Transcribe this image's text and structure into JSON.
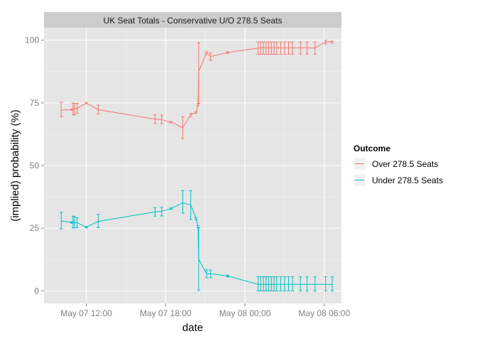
{
  "chart_data": {
    "type": "line",
    "title": "UK Seat Totals - Conservative U/O 278.5 Seats",
    "xlabel": "date",
    "ylabel": "(implied) probability (%)",
    "x_unit": "hours since May 07 00:00",
    "xlim": [
      8.8,
      31.3
    ],
    "ylim": [
      -5,
      105
    ],
    "x_ticks": [
      {
        "value": 12,
        "label": "May 07 12:00"
      },
      {
        "value": 18,
        "label": "May 07 18:00"
      },
      {
        "value": 24,
        "label": "May 08 00:00"
      },
      {
        "value": 30,
        "label": "May 08 06:00"
      }
    ],
    "y_ticks": [
      0,
      25,
      50,
      75,
      100
    ],
    "grid": true,
    "legend": {
      "title": "Outcome",
      "position": "right"
    },
    "colors": {
      "over": "#F8766D",
      "under": "#00BFC4"
    },
    "series": [
      {
        "name": "Over 278.5 Seats",
        "color": "#F8766D",
        "points": [
          {
            "x": 10.1,
            "y": 72.1,
            "lo": 69.5,
            "hi": 75.2
          },
          {
            "x": 10.9,
            "y": 72.3,
            "lo": 72.0,
            "hi": 72.6
          },
          {
            "x": 11.0,
            "y": 72.6,
            "lo": 70.2,
            "hi": 74.9
          },
          {
            "x": 11.1,
            "y": 72.6,
            "lo": 70.3,
            "hi": 74.8
          },
          {
            "x": 11.3,
            "y": 72.8,
            "lo": 70.8,
            "hi": 74.8
          },
          {
            "x": 12.0,
            "y": 74.9,
            "lo": 74.6,
            "hi": 75.2
          },
          {
            "x": 12.9,
            "y": 72.3,
            "lo": 70.5,
            "hi": 74.1
          },
          {
            "x": 17.2,
            "y": 68.5,
            "lo": 66.8,
            "hi": 70.3
          },
          {
            "x": 17.7,
            "y": 68.3,
            "lo": 66.7,
            "hi": 70.1
          },
          {
            "x": 18.4,
            "y": 67.3,
            "lo": 67.0,
            "hi": 67.6
          },
          {
            "x": 19.3,
            "y": 65.1,
            "lo": 60.8,
            "hi": 69.4
          },
          {
            "x": 19.9,
            "y": 70.2,
            "lo": 69.5,
            "hi": 70.8
          },
          {
            "x": 20.3,
            "y": 71.2,
            "lo": 70.9,
            "hi": 71.5
          },
          {
            "x": 20.45,
            "y": 74.2,
            "lo": 73.8,
            "hi": 74.6
          },
          {
            "x": 20.5,
            "y": 87.6,
            "lo": 74.8,
            "hi": 99.0
          },
          {
            "x": 21.1,
            "y": 95.0,
            "lo": 94.6,
            "hi": 95.4
          },
          {
            "x": 21.4,
            "y": 93.5,
            "lo": 92.0,
            "hi": 95.0
          },
          {
            "x": 22.7,
            "y": 95.1,
            "lo": 94.8,
            "hi": 95.4
          },
          {
            "x": 25.0,
            "y": 96.9,
            "lo": 94.4,
            "hi": 99.3
          },
          {
            "x": 25.2,
            "y": 97.0,
            "lo": 94.4,
            "hi": 99.3
          },
          {
            "x": 25.4,
            "y": 97.0,
            "lo": 94.4,
            "hi": 99.3
          },
          {
            "x": 25.6,
            "y": 97.0,
            "lo": 94.4,
            "hi": 99.3
          },
          {
            "x": 25.8,
            "y": 97.0,
            "lo": 94.4,
            "hi": 99.3
          },
          {
            "x": 26.0,
            "y": 97.0,
            "lo": 94.4,
            "hi": 99.3
          },
          {
            "x": 26.2,
            "y": 97.0,
            "lo": 94.4,
            "hi": 99.3
          },
          {
            "x": 26.4,
            "y": 97.0,
            "lo": 94.4,
            "hi": 99.3
          },
          {
            "x": 26.7,
            "y": 97.0,
            "lo": 94.4,
            "hi": 99.3
          },
          {
            "x": 27.0,
            "y": 97.0,
            "lo": 94.4,
            "hi": 99.3
          },
          {
            "x": 27.3,
            "y": 97.0,
            "lo": 94.4,
            "hi": 99.3
          },
          {
            "x": 27.6,
            "y": 97.0,
            "lo": 94.4,
            "hi": 99.3
          },
          {
            "x": 28.2,
            "y": 97.0,
            "lo": 94.4,
            "hi": 99.3
          },
          {
            "x": 28.7,
            "y": 97.0,
            "lo": 94.4,
            "hi": 99.3
          },
          {
            "x": 29.3,
            "y": 96.9,
            "lo": 94.4,
            "hi": 99.3
          },
          {
            "x": 30.1,
            "y": 99.4,
            "lo": 98.5,
            "hi": 100.0
          },
          {
            "x": 30.6,
            "y": 99.4,
            "lo": 98.9,
            "hi": 99.7
          }
        ]
      },
      {
        "name": "Under 278.5 Seats",
        "color": "#00BFC4",
        "points": [
          {
            "x": 10.1,
            "y": 27.9,
            "lo": 24.8,
            "hi": 31.3
          },
          {
            "x": 10.9,
            "y": 27.3,
            "lo": 27.0,
            "hi": 27.6
          },
          {
            "x": 11.0,
            "y": 27.4,
            "lo": 25.1,
            "hi": 29.8
          },
          {
            "x": 11.1,
            "y": 27.3,
            "lo": 25.1,
            "hi": 29.6
          },
          {
            "x": 11.3,
            "y": 27.2,
            "lo": 25.2,
            "hi": 29.2
          },
          {
            "x": 12.0,
            "y": 25.4,
            "lo": 25.1,
            "hi": 25.7
          },
          {
            "x": 12.9,
            "y": 27.7,
            "lo": 25.2,
            "hi": 30.5
          },
          {
            "x": 17.2,
            "y": 31.5,
            "lo": 29.8,
            "hi": 33.2
          },
          {
            "x": 17.7,
            "y": 31.7,
            "lo": 29.9,
            "hi": 33.3
          },
          {
            "x": 18.4,
            "y": 32.8,
            "lo": 32.5,
            "hi": 33.1
          },
          {
            "x": 19.3,
            "y": 35.1,
            "lo": 31.0,
            "hi": 40.0
          },
          {
            "x": 19.9,
            "y": 34.3,
            "lo": 28.5,
            "hi": 40.0
          },
          {
            "x": 20.3,
            "y": 28.8,
            "lo": 28.4,
            "hi": 29.2
          },
          {
            "x": 20.45,
            "y": 25.6,
            "lo": 25.2,
            "hi": 26.0
          },
          {
            "x": 20.5,
            "y": 12.6,
            "lo": 0.2,
            "hi": 25.2
          },
          {
            "x": 21.1,
            "y": 6.8,
            "lo": 5.2,
            "hi": 8.4
          },
          {
            "x": 21.4,
            "y": 6.8,
            "lo": 5.2,
            "hi": 8.4
          },
          {
            "x": 22.7,
            "y": 5.9,
            "lo": 5.5,
            "hi": 6.3
          },
          {
            "x": 25.0,
            "y": 2.6,
            "lo": 0.0,
            "hi": 5.6
          },
          {
            "x": 25.2,
            "y": 2.6,
            "lo": 0.0,
            "hi": 5.6
          },
          {
            "x": 25.4,
            "y": 2.6,
            "lo": 0.0,
            "hi": 5.6
          },
          {
            "x": 25.6,
            "y": 2.6,
            "lo": 0.0,
            "hi": 5.6
          },
          {
            "x": 25.8,
            "y": 2.6,
            "lo": 0.0,
            "hi": 5.6
          },
          {
            "x": 26.0,
            "y": 2.6,
            "lo": 0.0,
            "hi": 5.6
          },
          {
            "x": 26.2,
            "y": 2.6,
            "lo": 0.0,
            "hi": 5.6
          },
          {
            "x": 26.4,
            "y": 2.6,
            "lo": 0.0,
            "hi": 5.6
          },
          {
            "x": 26.7,
            "y": 2.6,
            "lo": 0.0,
            "hi": 5.6
          },
          {
            "x": 27.0,
            "y": 2.6,
            "lo": 0.0,
            "hi": 5.6
          },
          {
            "x": 27.3,
            "y": 2.6,
            "lo": 0.0,
            "hi": 5.6
          },
          {
            "x": 27.6,
            "y": 2.6,
            "lo": 0.0,
            "hi": 5.6
          },
          {
            "x": 28.2,
            "y": 2.6,
            "lo": 0.0,
            "hi": 5.6
          },
          {
            "x": 28.7,
            "y": 2.6,
            "lo": 0.0,
            "hi": 5.6
          },
          {
            "x": 29.3,
            "y": 2.6,
            "lo": 0.0,
            "hi": 5.6
          },
          {
            "x": 30.1,
            "y": 2.6,
            "lo": 0.0,
            "hi": 5.6
          },
          {
            "x": 30.6,
            "y": 2.6,
            "lo": 0.0,
            "hi": 5.6
          }
        ]
      }
    ]
  }
}
